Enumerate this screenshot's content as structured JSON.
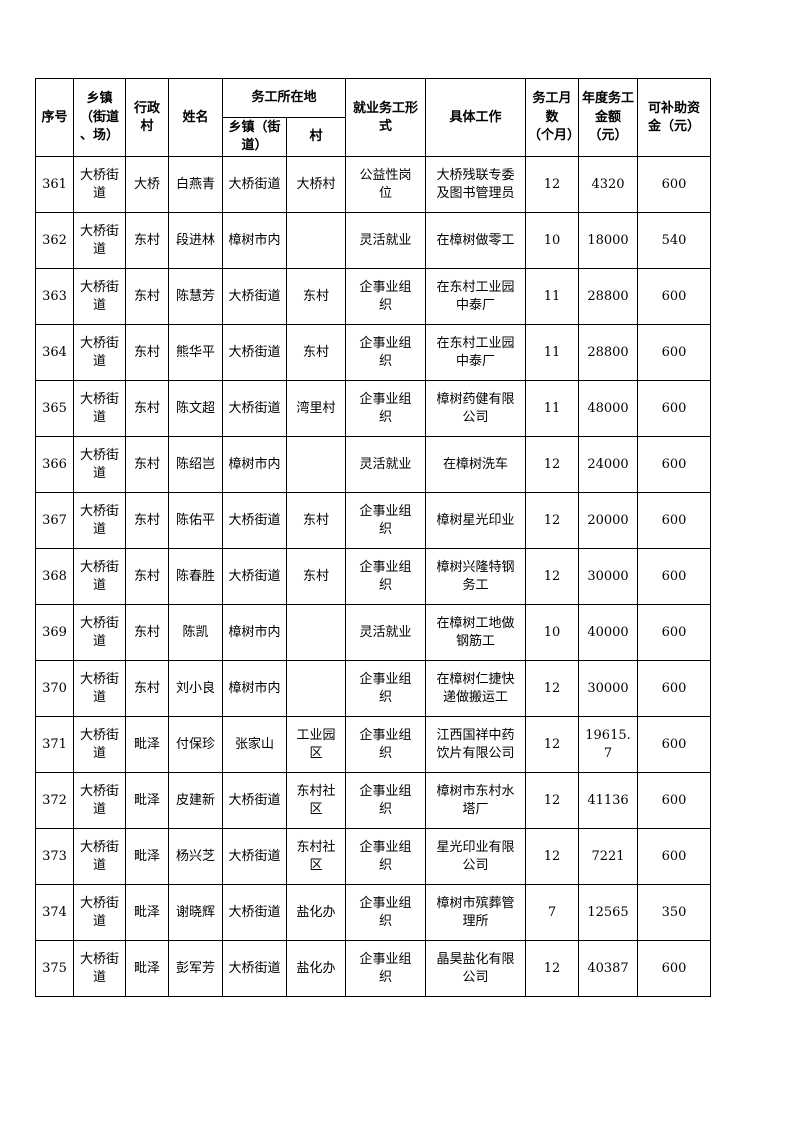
{
  "document": {
    "columns": {
      "seq": "序号",
      "township": "乡镇\n（街道\n、场）",
      "admin_village": "行政村",
      "name": "姓名",
      "work_location_group": "务工所在地",
      "work_township": "乡镇（街\n道）",
      "work_village": "村",
      "employment_form": "就业务工形式",
      "job": "具体工作",
      "months": "务工月数\n（个月）",
      "annual_amount": "年度务工\n金额\n（元）",
      "subsidy": "可补助资\n金（元）"
    },
    "rows": [
      {
        "seq": "361",
        "township": "大桥街\n道",
        "admin_village": "大桥",
        "name": "白燕青",
        "work_township": "大桥街道",
        "work_village": "大桥村",
        "employment_form": "公益性岗\n位",
        "job": "大桥残联专委\n及图书管理员",
        "months": "12",
        "annual_amount": "4320",
        "subsidy": "600"
      },
      {
        "seq": "362",
        "township": "大桥街\n道",
        "admin_village": "东村",
        "name": "段进林",
        "work_township": "樟树市内",
        "work_village": "",
        "employment_form": "灵活就业",
        "job": "在樟树做零工",
        "months": "10",
        "annual_amount": "18000",
        "subsidy": "540"
      },
      {
        "seq": "363",
        "township": "大桥街\n道",
        "admin_village": "东村",
        "name": "陈慧芳",
        "work_township": "大桥街道",
        "work_village": "东村",
        "employment_form": "企事业组\n织",
        "job": "在东村工业园\n中泰厂",
        "months": "11",
        "annual_amount": "28800",
        "subsidy": "600"
      },
      {
        "seq": "364",
        "township": "大桥街\n道",
        "admin_village": "东村",
        "name": "熊华平",
        "work_township": "大桥街道",
        "work_village": "东村",
        "employment_form": "企事业组\n织",
        "job": "在东村工业园\n中泰厂",
        "months": "11",
        "annual_amount": "28800",
        "subsidy": "600"
      },
      {
        "seq": "365",
        "township": "大桥街\n道",
        "admin_village": "东村",
        "name": "陈文超",
        "work_township": "大桥街道",
        "work_village": "湾里村",
        "employment_form": "企事业组\n织",
        "job": "樟树药健有限\n公司",
        "months": "11",
        "annual_amount": "48000",
        "subsidy": "600"
      },
      {
        "seq": "366",
        "township": "大桥街\n道",
        "admin_village": "东村",
        "name": "陈绍岂",
        "work_township": "樟树市内",
        "work_village": "",
        "employment_form": "灵活就业",
        "job": "在樟树洗车",
        "months": "12",
        "annual_amount": "24000",
        "subsidy": "600"
      },
      {
        "seq": "367",
        "township": "大桥街\n道",
        "admin_village": "东村",
        "name": "陈佑平",
        "work_township": "大桥街道",
        "work_village": "东村",
        "employment_form": "企事业组\n织",
        "job": "樟树星光印业",
        "months": "12",
        "annual_amount": "20000",
        "subsidy": "600"
      },
      {
        "seq": "368",
        "township": "大桥街\n道",
        "admin_village": "东村",
        "name": "陈春胜",
        "work_township": "大桥街道",
        "work_village": "东村",
        "employment_form": "企事业组\n织",
        "job": "樟树兴隆特钢\n务工",
        "months": "12",
        "annual_amount": "30000",
        "subsidy": "600"
      },
      {
        "seq": "369",
        "township": "大桥街\n道",
        "admin_village": "东村",
        "name": "陈凯",
        "work_township": "樟树市内",
        "work_village": "",
        "employment_form": "灵活就业",
        "job": "在樟树工地做\n钢筋工",
        "months": "10",
        "annual_amount": "40000",
        "subsidy": "600"
      },
      {
        "seq": "370",
        "township": "大桥街\n道",
        "admin_village": "东村",
        "name": "刘小良",
        "work_township": "樟树市内",
        "work_village": "",
        "employment_form": "企事业组\n织",
        "job": "在樟树仁捷快\n递做搬运工",
        "months": "12",
        "annual_amount": "30000",
        "subsidy": "600"
      },
      {
        "seq": "371",
        "township": "大桥街\n道",
        "admin_village": "毗泽",
        "name": "付保珍",
        "work_township": "张家山",
        "work_village": "工业园\n区",
        "employment_form": "企事业组\n织",
        "job": "江西国祥中药\n饮片有限公司",
        "months": "12",
        "annual_amount": "19615. 7",
        "subsidy": "600"
      },
      {
        "seq": "372",
        "township": "大桥街\n道",
        "admin_village": "毗泽",
        "name": "皮建新",
        "work_township": "大桥街道",
        "work_village": "东村社\n区",
        "employment_form": "企事业组\n织",
        "job": "樟树市东村水\n塔厂",
        "months": "12",
        "annual_amount": "41136",
        "subsidy": "600"
      },
      {
        "seq": "373",
        "township": "大桥街\n道",
        "admin_village": "毗泽",
        "name": "杨兴芝",
        "work_township": "大桥街道",
        "work_village": "东村社\n区",
        "employment_form": "企事业组\n织",
        "job": "星光印业有限\n公司",
        "months": "12",
        "annual_amount": "7221",
        "subsidy": "600"
      },
      {
        "seq": "374",
        "township": "大桥街\n道",
        "admin_village": "毗泽",
        "name": "谢晓辉",
        "work_township": "大桥街道",
        "work_village": "盐化办",
        "employment_form": "企事业组\n织",
        "job": "樟树市殡葬管\n理所",
        "months": "7",
        "annual_amount": "12565",
        "subsidy": "350"
      },
      {
        "seq": "375",
        "township": "大桥街\n道",
        "admin_village": "毗泽",
        "name": "彭军芳",
        "work_township": "大桥街道",
        "work_village": "盐化办",
        "employment_form": "企事业组\n织",
        "job": "晶昊盐化有限\n公司",
        "months": "12",
        "annual_amount": "40387",
        "subsidy": "600"
      }
    ]
  }
}
